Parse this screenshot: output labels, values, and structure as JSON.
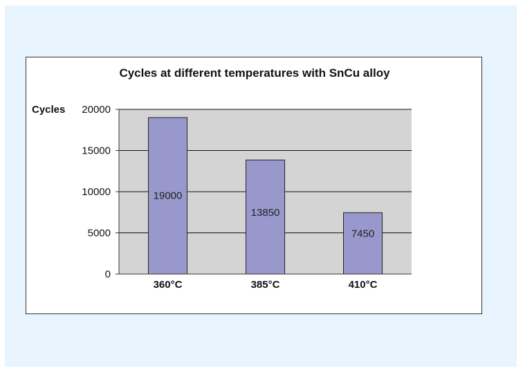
{
  "colors": {
    "panel_background": "#e8f5fe",
    "plot_background": "#d4d4d4",
    "bar_fill": "#9898cc",
    "bar_stroke": "#222222",
    "gridline": "#111111"
  },
  "chart_data": {
    "type": "bar",
    "title": "Cycles at different temperatures with SnCu alloy",
    "xlabel": "",
    "ylabel": "Cycles",
    "categories": [
      "360°C",
      "385°C",
      "410°C"
    ],
    "values": [
      19000,
      13850,
      7450
    ],
    "data_labels": [
      "19000",
      "13850",
      "7450"
    ],
    "ylim": [
      0,
      20000
    ],
    "yticks": [
      0,
      5000,
      10000,
      15000,
      20000
    ],
    "ytick_labels": [
      "0",
      "5000",
      "10000",
      "15000",
      "20000"
    ],
    "grid": true,
    "legend": "none"
  }
}
